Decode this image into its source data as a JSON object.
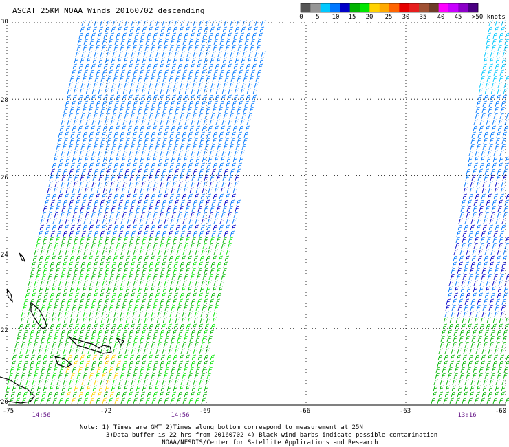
{
  "title": "ASCAT 25KM NOAA Winds 20160702 descending",
  "legend": {
    "colors": [
      "#555555",
      "#969696",
      "#00c8ff",
      "#0078ff",
      "#0000c8",
      "#00b400",
      "#00e600",
      "#ffd200",
      "#ffaa00",
      "#ff6400",
      "#e60000",
      "#e61e1e",
      "#a05032",
      "#6e3c28",
      "#ff00ff",
      "#c800ff",
      "#8c00c8",
      "#4b0082"
    ],
    "ticks": [
      "0",
      "5",
      "10",
      "15",
      "20",
      "25",
      "30",
      "35",
      "40",
      "45",
      ">50 knots"
    ]
  },
  "map": {
    "lat_labels": [
      "30",
      "28",
      "26",
      "24",
      "22",
      "20"
    ],
    "lon_labels": [
      "-75",
      "-72",
      "-69",
      "-66",
      "-63",
      "-60"
    ],
    "time_labels": [
      "14:56",
      "14:56",
      "13:16"
    ],
    "x_range": [
      -75,
      -60
    ],
    "y_range": [
      20,
      30
    ]
  },
  "notes": [
    "Note: 1) Times are GMT 2)Times along bottom correspond to measurement at 25N",
    "3)Data buffer is 22 hrs from 20160702 4) Black wind barbs indicate possible contamination",
    "NOAA/NESDIS/Center for Satellite Applications and Research"
  ]
}
